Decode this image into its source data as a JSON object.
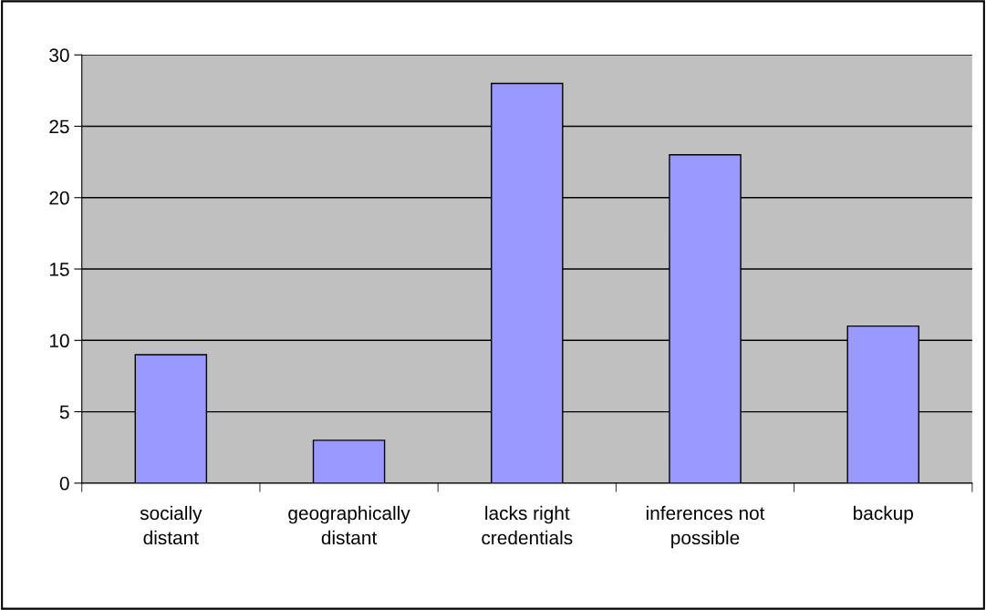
{
  "chart_data": {
    "type": "bar",
    "categories": [
      "socially\ndistant",
      "geographically\ndistant",
      "lacks right\ncredentials",
      "inferences not\npossible",
      "backup"
    ],
    "values": [
      9,
      3,
      28,
      23,
      11
    ],
    "color": "#9999ff",
    "ylim": [
      0,
      30
    ],
    "yticks": [
      0,
      5,
      10,
      15,
      20,
      25,
      30
    ],
    "grid": "y",
    "legend": false
  }
}
